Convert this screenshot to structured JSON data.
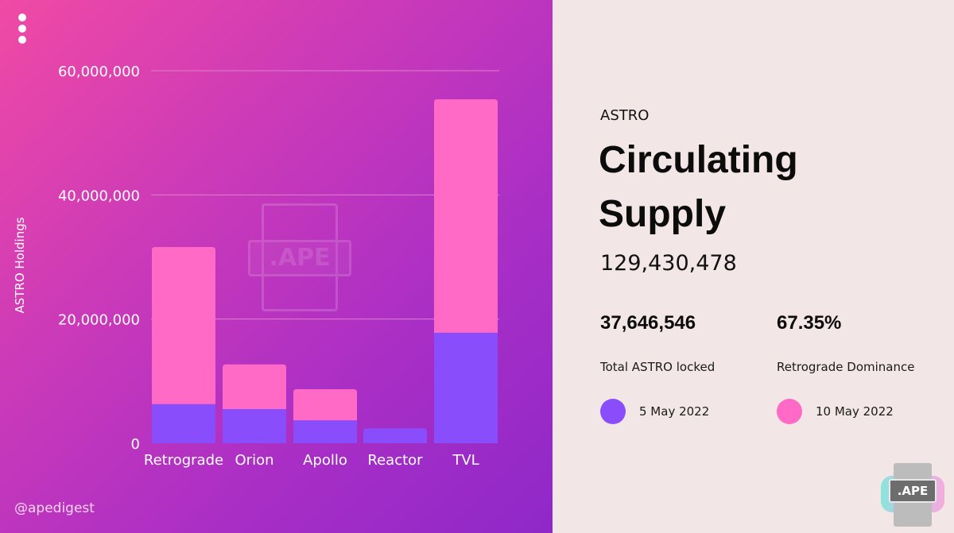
{
  "colors": {
    "series_early": "#8a4dfb",
    "series_late": "#ff6ac6",
    "gridline": "#e07fcf"
  },
  "chart_data": {
    "type": "bar",
    "stacked": true,
    "title": "",
    "xlabel": "",
    "ylabel": "ASTRO Holdings",
    "ylim": [
      0,
      60000000
    ],
    "yticks": [
      0,
      20000000,
      40000000,
      60000000
    ],
    "ytick_labels": [
      "0",
      "20,000,000",
      "40,000,000",
      "60,000,000"
    ],
    "categories": [
      "Retrograde",
      "Orion",
      "Apollo",
      "Reactor",
      "TVL"
    ],
    "series": [
      {
        "name": "5 May 2022",
        "values": [
          6300000,
          5500000,
          3700000,
          2400000,
          17800000
        ]
      },
      {
        "name": "10 May 2022",
        "values": [
          25300000,
          7200000,
          5000000,
          0,
          37600000
        ]
      }
    ],
    "grid": true,
    "legend": "right-panel"
  },
  "menu_icon": "vertical-dots-icon",
  "handle": "@apedigest",
  "watermark_text": ".APE",
  "panel": {
    "subtitle": "ASTRO",
    "title": "Circulating Supply",
    "supply": "129,430,478",
    "stats": [
      {
        "value": "37,646,546",
        "label": "Total ASTRO locked"
      },
      {
        "value": "67.35%",
        "label": "Retrograde Dominance"
      }
    ],
    "legend": [
      {
        "label": "5 May 2022",
        "color": "#8a4dfb"
      },
      {
        "label": "10 May 2022",
        "color": "#ff6ac6"
      }
    ]
  },
  "logo_text": ".APE"
}
